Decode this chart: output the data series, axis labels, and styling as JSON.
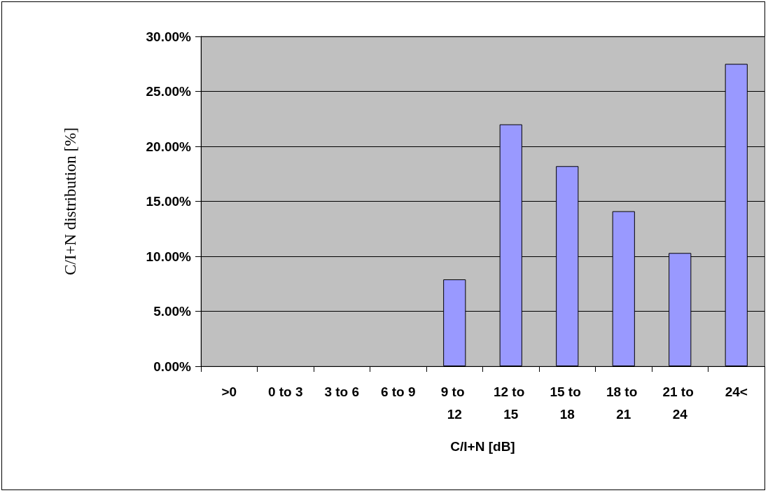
{
  "chart_data": {
    "type": "bar",
    "xlabel": "C/I+N [dB]",
    "ylabel": "C/I+N distribution [%]",
    "categories": [
      ">0",
      "0 to 3",
      "3 to 6",
      "6 to 9",
      "9 to 12",
      "12 to 15",
      "15 to 18",
      "18 to 21",
      "21 to 24",
      "24<"
    ],
    "values": [
      0,
      0,
      0,
      0,
      7.9,
      22.0,
      18.2,
      14.1,
      10.3,
      27.5
    ],
    "color": "#9999ff",
    "ylim": [
      0,
      30
    ],
    "yticks": [
      {
        "value": 0,
        "label": "0.00%"
      },
      {
        "value": 5,
        "label": "5.00%"
      },
      {
        "value": 10,
        "label": "10.00%"
      },
      {
        "value": 15,
        "label": "15.00%"
      },
      {
        "value": 20,
        "label": "20.00%"
      },
      {
        "value": 25,
        "label": "25.00%"
      },
      {
        "value": 30,
        "label": "30.00%"
      }
    ],
    "grid": "y"
  }
}
